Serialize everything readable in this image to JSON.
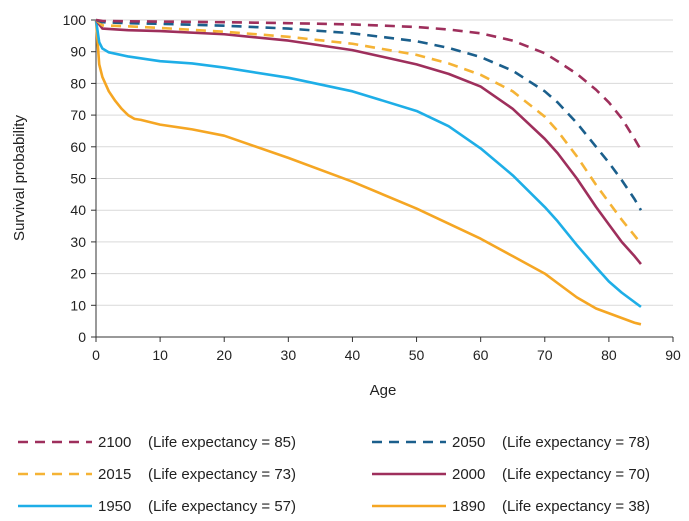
{
  "chart_data": {
    "type": "line",
    "title": "",
    "xlabel": "Age",
    "ylabel": "Survival probability",
    "xlim": [
      0,
      90
    ],
    "ylim": [
      0,
      100
    ],
    "xticks": [
      0,
      10,
      20,
      30,
      40,
      50,
      60,
      70,
      80,
      90
    ],
    "yticks": [
      0,
      10,
      20,
      30,
      40,
      50,
      60,
      70,
      80,
      90,
      100
    ],
    "grid": "horizontal",
    "legend_position": "bottom",
    "series": [
      {
        "name": "2100",
        "label": "(Life expectancy = 85)",
        "color": "#9e2f5c",
        "style": "dashed",
        "x": [
          0,
          1,
          5,
          10,
          20,
          30,
          40,
          50,
          55,
          60,
          65,
          70,
          72,
          75,
          78,
          80,
          82,
          84,
          85
        ],
        "y": [
          100,
          99.7,
          99.6,
          99.5,
          99.3,
          99.0,
          98.6,
          97.8,
          97.0,
          95.8,
          93.5,
          89.5,
          87.0,
          83.0,
          78.0,
          74.0,
          69.0,
          62.5,
          59.0
        ]
      },
      {
        "name": "2050",
        "label": "(Life expectancy = 78)",
        "color": "#1b5f8c",
        "style": "dashed",
        "x": [
          0,
          1,
          5,
          10,
          20,
          30,
          40,
          50,
          55,
          60,
          65,
          70,
          72,
          75,
          78,
          80,
          82,
          84,
          85
        ],
        "y": [
          100,
          99.3,
          99.0,
          98.8,
          98.2,
          97.3,
          95.8,
          93.3,
          91.2,
          88.3,
          84.0,
          77.5,
          74.0,
          67.5,
          60.0,
          55.0,
          49.5,
          43.5,
          40.0
        ]
      },
      {
        "name": "2015",
        "label": "(Life expectancy = 73)",
        "color": "#f5b335",
        "style": "dashed",
        "x": [
          0,
          1,
          5,
          10,
          20,
          30,
          40,
          50,
          55,
          60,
          65,
          70,
          72,
          75,
          78,
          80,
          82,
          84,
          85
        ],
        "y": [
          100,
          98.3,
          98.0,
          97.5,
          96.3,
          94.7,
          92.5,
          89.0,
          86.3,
          82.7,
          77.5,
          69.5,
          65.0,
          57.0,
          48.0,
          42.5,
          37.0,
          32.0,
          29.5
        ]
      },
      {
        "name": "2000",
        "label": "(Life expectancy = 70)",
        "color": "#9e2f5c",
        "style": "solid",
        "x": [
          0,
          1,
          5,
          10,
          20,
          30,
          40,
          50,
          55,
          60,
          65,
          70,
          72,
          75,
          78,
          80,
          82,
          84,
          85
        ],
        "y": [
          100,
          97.3,
          96.8,
          96.5,
          95.5,
          93.5,
          90.5,
          86.0,
          83.0,
          79.0,
          72.0,
          62.5,
          58.0,
          50.0,
          41.0,
          35.5,
          30.0,
          25.5,
          23.0
        ]
      },
      {
        "name": "1950",
        "label": "(Life expectancy = 57)",
        "color": "#1eaee7",
        "style": "solid",
        "x": [
          0,
          0.5,
          1,
          2,
          5,
          10,
          15,
          20,
          30,
          40,
          50,
          55,
          60,
          65,
          70,
          72,
          75,
          78,
          80,
          82,
          84,
          85
        ],
        "y": [
          100,
          93.0,
          91.0,
          89.8,
          88.5,
          87.0,
          86.3,
          85.0,
          81.8,
          77.5,
          71.3,
          66.5,
          59.5,
          51.0,
          41.0,
          36.5,
          29.0,
          22.0,
          17.5,
          14.0,
          11.0,
          9.5
        ]
      },
      {
        "name": "1890",
        "label": "(Life expectancy = 38)",
        "color": "#f5a623",
        "style": "solid",
        "x": [
          0,
          0.5,
          1,
          2,
          3,
          4,
          5,
          6,
          7,
          10,
          15,
          20,
          30,
          40,
          50,
          60,
          65,
          70,
          72,
          75,
          78,
          80,
          82,
          84,
          85
        ],
        "y": [
          100,
          86.0,
          82.0,
          77.5,
          74.5,
          72.0,
          70.0,
          68.8,
          68.5,
          67.0,
          65.5,
          63.5,
          56.5,
          49.0,
          40.5,
          31.0,
          25.5,
          20.0,
          17.0,
          12.5,
          9.0,
          7.5,
          6.0,
          4.5,
          4.0
        ]
      }
    ]
  }
}
